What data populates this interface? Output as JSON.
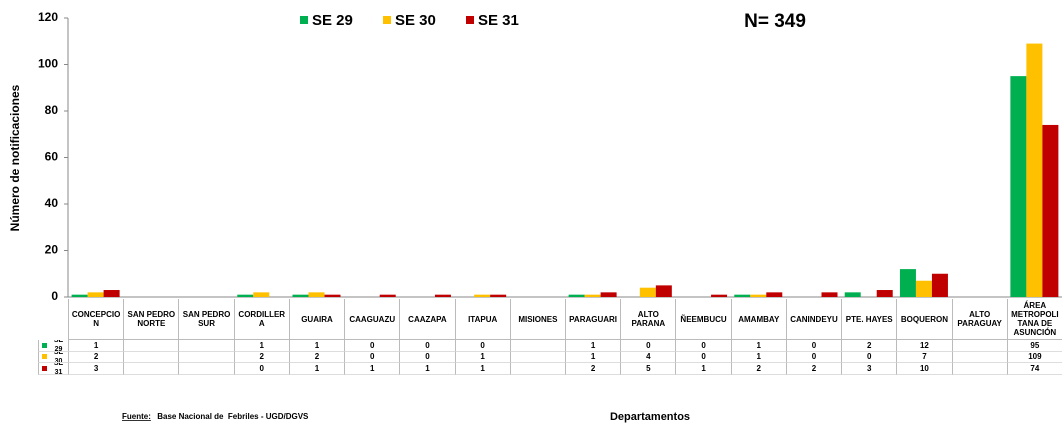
{
  "chart_data": {
    "type": "bar",
    "title": "N= 349",
    "y_label": "Número de notificaciones",
    "x_label": "Departamentos",
    "source_label": "Fuente:",
    "source_text": " Base Nacional de  Febriles - UGD/DGVS",
    "categories": [
      "CONCEPCION",
      "SAN PEDRO NORTE",
      "SAN PEDRO SUR",
      "CORDILLERA",
      "GUAIRA",
      "CAAGUAZU",
      "CAAZAPA",
      "ITAPUA",
      "MISIONES",
      "PARAGUARI",
      "ALTO PARANA",
      "ÑEEMBUCU",
      "AMAMBAY",
      "CANINDEYU",
      "PTE. HAYES",
      "BOQUERON",
      "ALTO PARAGUAY",
      "ÁREA METROPOLITANA DE ASUNCIÓN"
    ],
    "series": [
      {
        "name": "SE 29",
        "color": "#00b050",
        "values": [
          1,
          null,
          null,
          1,
          1,
          0,
          0,
          0,
          null,
          1,
          0,
          0,
          1,
          0,
          2,
          12,
          null,
          95
        ]
      },
      {
        "name": "SE 30",
        "color": "#ffc000",
        "values": [
          2,
          null,
          null,
          2,
          2,
          0,
          0,
          1,
          null,
          1,
          4,
          0,
          1,
          0,
          0,
          7,
          null,
          109
        ]
      },
      {
        "name": "SE 31",
        "color": "#c00000",
        "values": [
          3,
          null,
          null,
          0,
          1,
          1,
          1,
          1,
          null,
          2,
          5,
          1,
          2,
          2,
          3,
          10,
          null,
          74
        ]
      }
    ],
    "ylim": [
      0,
      120
    ],
    "yticks": [
      0,
      20,
      40,
      60,
      80,
      100,
      120
    ],
    "grid": false
  }
}
